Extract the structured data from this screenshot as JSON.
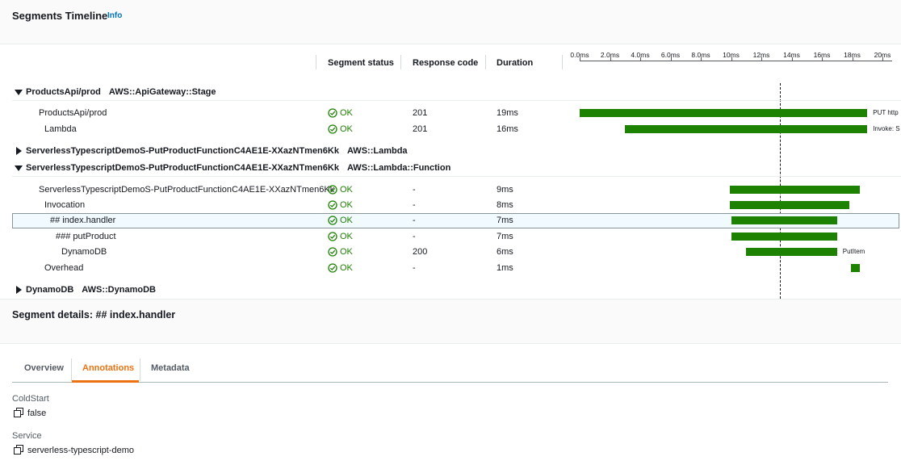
{
  "header": {
    "title": "Segments Timeline",
    "info": "Info"
  },
  "table": {
    "columns": [
      "Segment status",
      "Response code",
      "Duration"
    ],
    "axis_ticks": [
      {
        "value": 0,
        "label": "0.0ms"
      },
      {
        "value": 2,
        "label": "2.0ms"
      },
      {
        "value": 4,
        "label": "4.0ms"
      },
      {
        "value": 6,
        "label": "6.0ms"
      },
      {
        "value": 8,
        "label": "8.0ms"
      },
      {
        "value": 10,
        "label": "10ms"
      },
      {
        "value": 12,
        "label": "12ms"
      },
      {
        "value": 14,
        "label": "14ms"
      },
      {
        "value": 16,
        "label": "16ms"
      },
      {
        "value": 18,
        "label": "18ms"
      },
      {
        "value": 20,
        "label": "20ms"
      }
    ],
    "marker_ms": 13.2,
    "bar_color": "#1d8102",
    "groups": [
      {
        "name": "ProductsApi/prod",
        "type": "AWS::ApiGateway::Stage",
        "expanded": true,
        "rows": [
          {
            "name": "ProductsApi/prod",
            "status": "OK",
            "code": 201,
            "duration": "19ms",
            "bar": [
              0,
              19
            ],
            "bar_label": "PUT http"
          },
          {
            "name": "Lambda",
            "status": "OK",
            "code": 201,
            "duration": "16ms",
            "bar": [
              3,
              19
            ],
            "bar_label": "Invoke: S"
          }
        ]
      },
      {
        "name": "ServerlessTypescriptDemoS-PutProductFunctionC4AE1E-XXazNTmen6Kk",
        "type": "AWS::Lambda",
        "expanded": false,
        "rows": []
      },
      {
        "name": "ServerlessTypescriptDemoS-PutProductFunctionC4AE1E-XXazNTmen6Kk",
        "type": "AWS::Lambda::Function",
        "expanded": true,
        "rows": [
          {
            "name": "ServerlessTypescriptDemoS-PutProductFunctionC4AE1E-XXazNTmen6Kk",
            "status": "OK",
            "code": "-",
            "duration": "9ms",
            "bar": [
              9.9,
              18.5
            ]
          },
          {
            "name": "Invocation",
            "status": "OK",
            "code": "-",
            "duration": "8ms",
            "bar": [
              9.9,
              17.8
            ]
          },
          {
            "name": "## index.handler",
            "status": "OK",
            "code": "-",
            "duration": "7ms",
            "bar": [
              10,
              17
            ]
          },
          {
            "name": "### putProduct",
            "status": "OK",
            "code": "-",
            "duration": "7ms",
            "bar": [
              10,
              17
            ]
          },
          {
            "name": "DynamoDB",
            "status": "OK",
            "code": 200,
            "duration": "6ms",
            "bar": [
              11,
              17
            ],
            "bar_label": "PutItem"
          },
          {
            "name": "Overhead",
            "status": "OK",
            "code": "-",
            "duration": "1ms",
            "bar": [
              17.9,
              18.5
            ]
          }
        ]
      },
      {
        "name": "DynamoDB",
        "type": "AWS::DynamoDB",
        "expanded": false,
        "rows": []
      }
    ]
  },
  "details": {
    "title": "Segment details: ## index.handler",
    "tabs": [
      "Overview",
      "Annotations",
      "Metadata"
    ],
    "active_tab": 1,
    "annotations": [
      {
        "key": "ColdStart",
        "value": "false"
      },
      {
        "key": "Service",
        "value": "serverless-typescript-demo"
      }
    ]
  }
}
